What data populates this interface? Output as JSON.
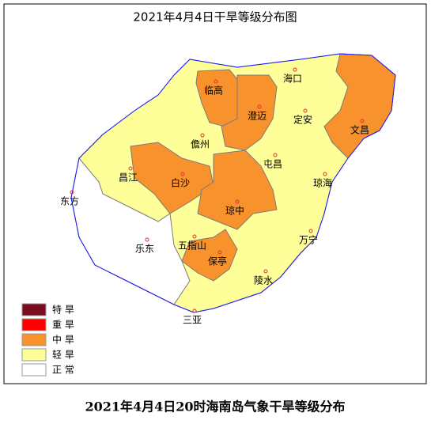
{
  "map": {
    "title": "2021年4月4日干旱等级分布图",
    "cities": [
      "海口",
      "临高",
      "澄迈",
      "定安",
      "文昌",
      "儋州",
      "屯昌",
      "昌江",
      "白沙",
      "琼海",
      "东方",
      "琼中",
      "乐东",
      "五指山",
      "万宁",
      "保亭",
      "陵水",
      "三亚"
    ],
    "legend": [
      {
        "label": "特 旱",
        "color": "#7b0c1f"
      },
      {
        "label": "重 旱",
        "color": "#ff0000"
      },
      {
        "label": "中 旱",
        "color": "#f7922c"
      },
      {
        "label": "轻 旱",
        "color": "#ffff99"
      },
      {
        "label": "正 常",
        "color": "#ffffff"
      }
    ],
    "caption": "2021年4月4日20时海南岛气象干旱等级分布"
  }
}
